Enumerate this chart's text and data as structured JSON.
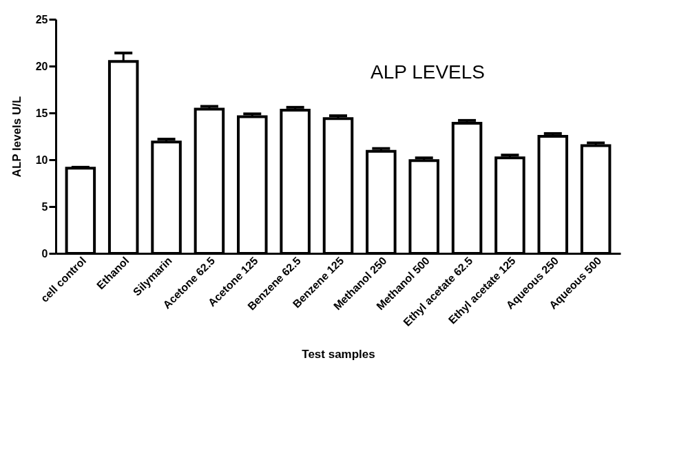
{
  "chart_data": {
    "type": "bar",
    "title": "ALP LEVELS",
    "xlabel": "Test samples",
    "ylabel": "ALP levels U/L",
    "categories": [
      "cell control",
      "Ethanol",
      "Silymarin",
      "Acetone 62.5",
      "Acetone 125",
      "Benzene 62.5",
      "Benzene 125",
      "Methanol 250",
      "Methanol 500",
      "Ethyl acetate 62.5",
      "Ethyl acetate 125",
      "Aqueous 250",
      "Aqueous 500"
    ],
    "values": [
      9.1,
      20.5,
      11.9,
      15.4,
      14.6,
      15.3,
      14.4,
      10.9,
      9.9,
      13.9,
      10.2,
      12.5,
      11.5
    ],
    "errors": [
      [
        9.1,
        9.2
      ],
      [
        20.5,
        21.4
      ],
      [
        11.9,
        12.2
      ],
      [
        15.4,
        15.7
      ],
      [
        14.6,
        14.9
      ],
      [
        15.3,
        15.6
      ],
      [
        14.4,
        14.7
      ],
      [
        10.9,
        11.2
      ],
      [
        9.9,
        10.2
      ],
      [
        13.9,
        14.2
      ],
      [
        10.2,
        10.5
      ],
      [
        12.5,
        12.8
      ],
      [
        11.5,
        11.8
      ]
    ],
    "color": "#ffffff",
    "ylim": [
      0,
      25
    ],
    "yticks": [
      0,
      5,
      10,
      15,
      20,
      25
    ],
    "grid": false
  }
}
